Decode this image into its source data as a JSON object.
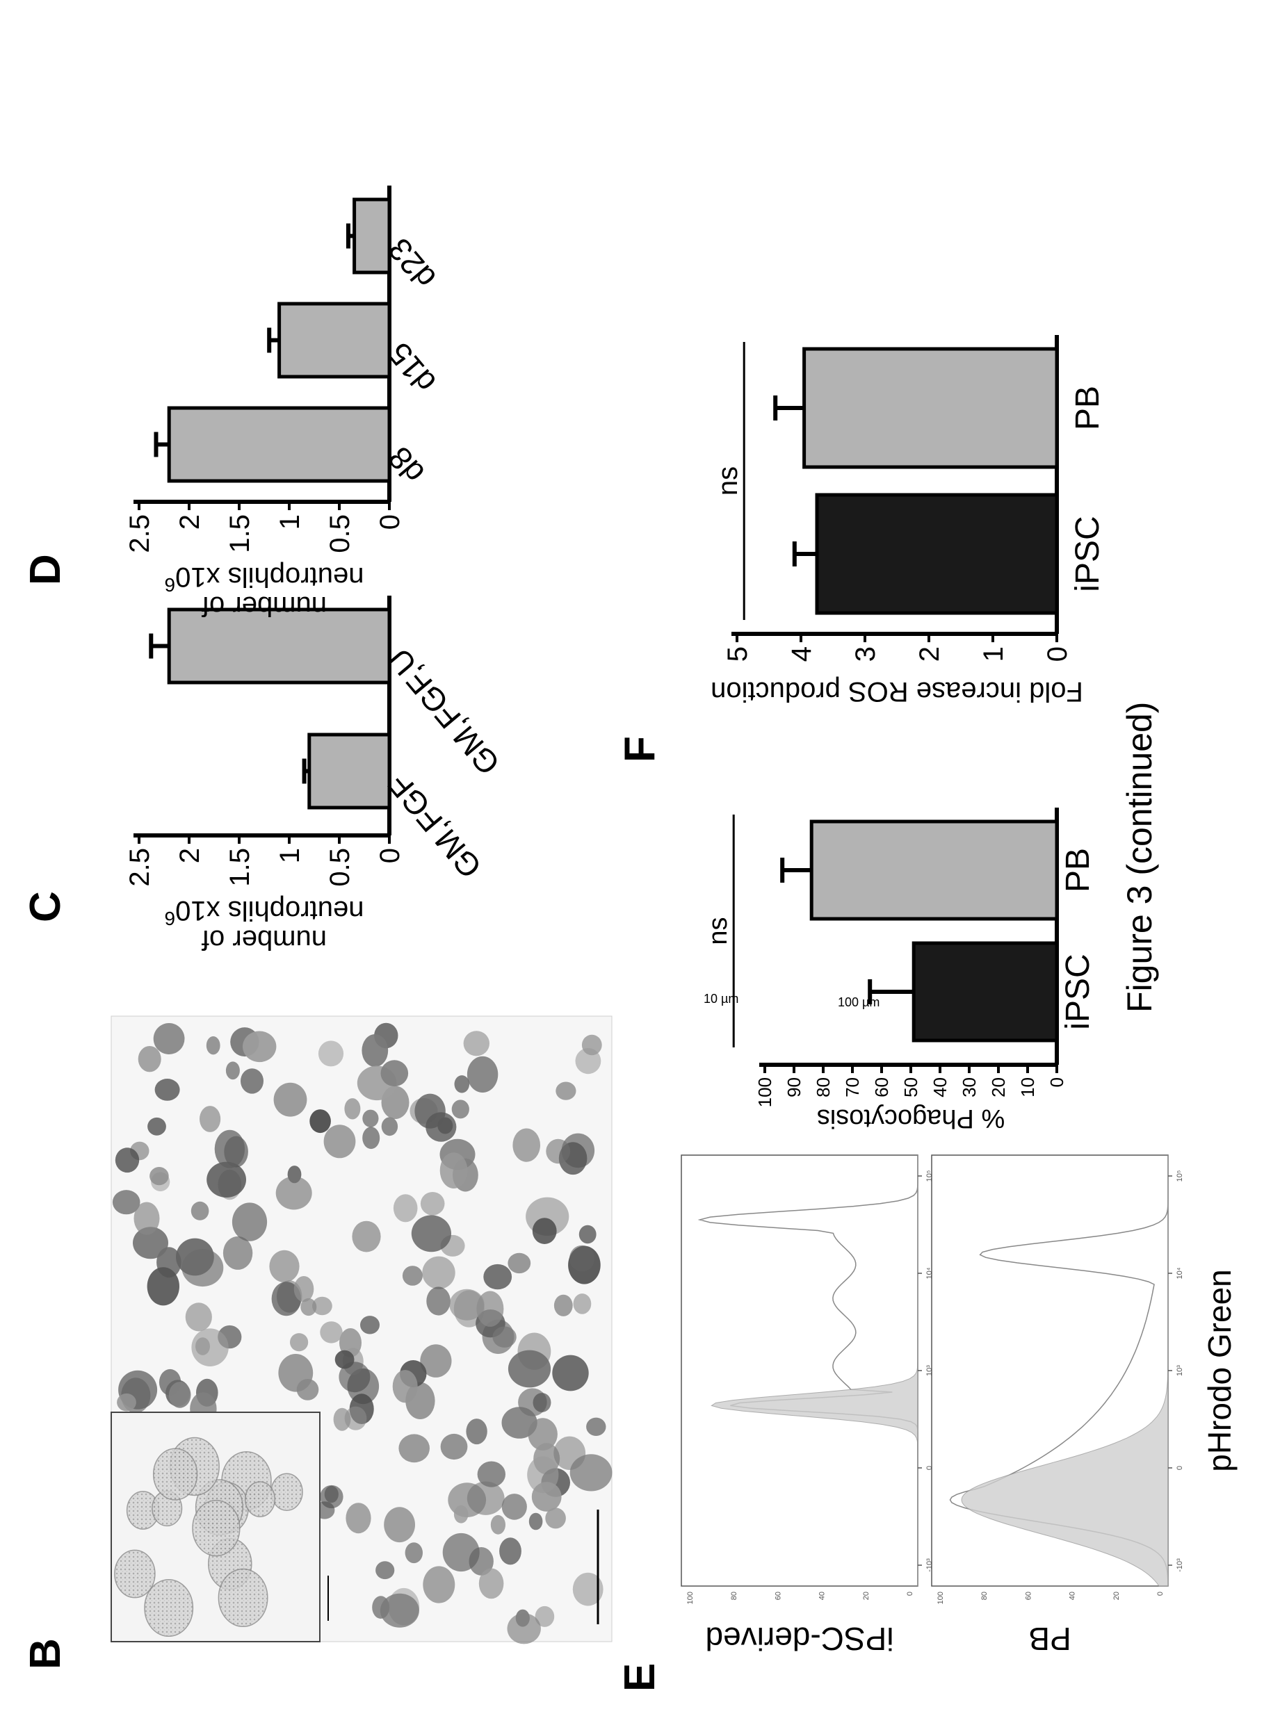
{
  "figure": {
    "caption": "Figure 3 (continued)",
    "labels": {
      "b": "B",
      "c": "C",
      "d": "D",
      "e": "E",
      "f": "F"
    }
  },
  "micrograph": {
    "inset_scale": "10 µm",
    "main_scale": "100 µm"
  },
  "histograms": {
    "xlabel": "pHrodo Green",
    "panels": [
      {
        "label": "iPSC-derived",
        "y_ticks": [
          "100",
          "80",
          "60",
          "40",
          "20",
          "0"
        ]
      },
      {
        "label": "PB",
        "y_ticks": [
          "100",
          "80",
          "60",
          "40",
          "20",
          "0"
        ]
      }
    ],
    "x_ticks": [
      "-10³",
      "0",
      "10³",
      "10⁴",
      "10⁵"
    ]
  },
  "chart_data": [
    {
      "panel": "C",
      "type": "bar",
      "categories": [
        "GM,FGF",
        "GM,FGF,U"
      ],
      "values": [
        0.8,
        2.2
      ],
      "errors": [
        0.05,
        0.18
      ],
      "ylim": [
        0,
        2.5
      ],
      "y_ticks": [
        "0",
        "0.5",
        "1",
        "1.5",
        "2",
        "2.5"
      ],
      "ylabel_line1": "number of",
      "ylabel_line2": "neutrophils x10",
      "ylabel_sup": "6",
      "bar_color": "#b3b3b3"
    },
    {
      "panel": "D",
      "type": "bar",
      "categories": [
        "d8",
        "d15",
        "d23"
      ],
      "values": [
        2.2,
        1.1,
        0.35
      ],
      "errors": [
        0.13,
        0.1,
        0.06
      ],
      "ylim": [
        0,
        2.5
      ],
      "y_ticks": [
        "0",
        "0.5",
        "1",
        "1.5",
        "2",
        "2.5"
      ],
      "ylabel_line1": "number of",
      "ylabel_line2": "neutrophils x10",
      "ylabel_sup": "6",
      "bar_color": "#b3b3b3"
    },
    {
      "panel": "E",
      "type": "bar",
      "categories": [
        "iPSC",
        "PB"
      ],
      "values": [
        49,
        84
      ],
      "errors": [
        15,
        10
      ],
      "colors": [
        "#1a1a1a",
        "#b3b3b3"
      ],
      "ylim": [
        0,
        100
      ],
      "y_ticks": [
        "0",
        "10",
        "20",
        "30",
        "40",
        "50",
        "60",
        "70",
        "80",
        "90",
        "100"
      ],
      "ylabel": "% Phagocytosis",
      "significance": "ns"
    },
    {
      "panel": "F",
      "type": "bar",
      "categories": [
        "iPSC",
        "PB"
      ],
      "values": [
        3.75,
        3.95
      ],
      "errors": [
        0.35,
        0.45
      ],
      "colors": [
        "#1a1a1a",
        "#b3b3b3"
      ],
      "ylim": [
        0,
        5
      ],
      "y_ticks": [
        "0",
        "1",
        "2",
        "3",
        "4",
        "5"
      ],
      "ylabel": "Fold increase ROS production",
      "significance": "ns"
    }
  ]
}
